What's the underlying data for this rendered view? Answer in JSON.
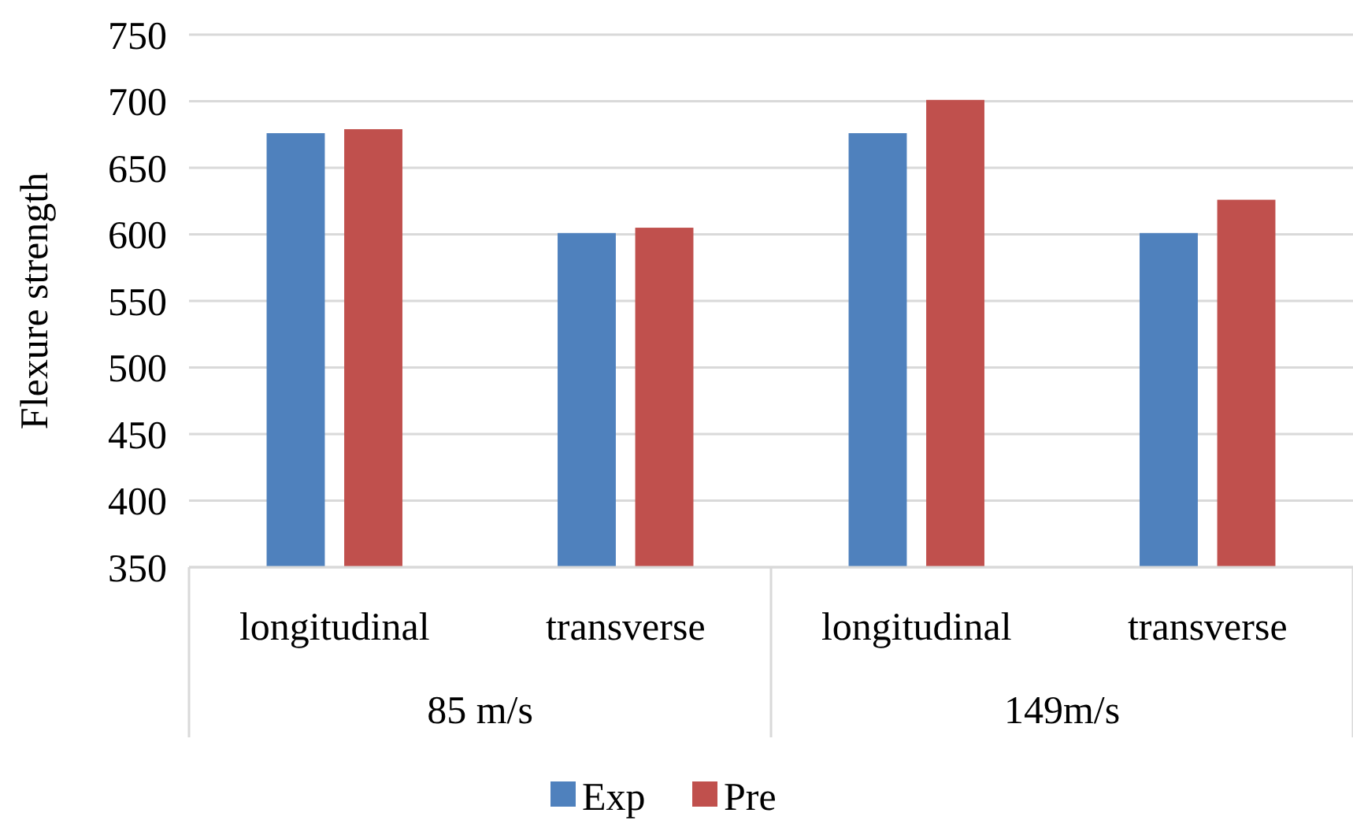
{
  "chart_data": {
    "type": "bar",
    "ylabel": "Flexure strength",
    "categories": [
      "longitudinal",
      "transverse",
      "longitudinal",
      "transverse"
    ],
    "annotations": [
      "85 m/s",
      "149m/s"
    ],
    "series": [
      {
        "name": "Exp",
        "color": "#4f81bd",
        "values": [
          676,
          601,
          676,
          601
        ]
      },
      {
        "name": "Pre",
        "color": "#c0504d",
        "values": [
          679,
          605,
          701,
          626
        ]
      }
    ],
    "ylim": [
      350,
      750
    ],
    "yticks": [
      350,
      400,
      450,
      500,
      550,
      600,
      650,
      700,
      750
    ],
    "grid": "y",
    "legend": "bottom"
  }
}
